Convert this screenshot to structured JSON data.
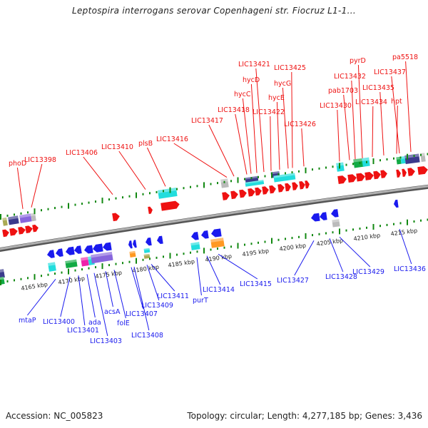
{
  "title": "Leptospira interrogans serovar Copenhageni str. Fiocruz L1-1...",
  "footer": {
    "accession": "Accession: NC_005823",
    "summary": "Topology: circular; Length: 4,277,185 bp; Genes: 3,436"
  },
  "colors": {
    "red": "#ee1111",
    "blue": "#1a1aee",
    "cyan": "#22dddd",
    "darkblue": "#3a3a8c",
    "purple": "#8866dd",
    "green": "#11aa44",
    "magenta": "#ee22aa",
    "orange": "#ff9922",
    "gray": "#bbbbbb",
    "olive": "#aaaa55",
    "tick": "#118811",
    "axis": "#888888"
  },
  "scale": {
    "unit": "kbp",
    "ticks": [
      {
        "label": "4165 kbp"
      },
      {
        "label": "4170 kbp"
      },
      {
        "label": "4175 kbp"
      },
      {
        "label": "4180 kbp"
      },
      {
        "label": "4185 kbp"
      },
      {
        "label": "4190 kbp"
      },
      {
        "label": "4195 kbp"
      },
      {
        "label": "4200 kbp"
      },
      {
        "label": "4205 kbp"
      },
      {
        "label": "4210 kbp"
      },
      {
        "label": "4215 kbp"
      }
    ]
  },
  "top_labels": [
    "phoD",
    "LIC13398",
    "LIC13406",
    "LIC13410",
    "plsB",
    "LIC13416",
    "LIC13417",
    "LIC13418",
    "hycC",
    "hycD",
    "LIC13421",
    "LIC13422",
    "hycE",
    "hycG",
    "LIC13425",
    "LIC13426",
    "LIC13430",
    "pab1703",
    "LIC13432",
    "pyrD",
    "LIC13434",
    "LIC13435",
    "hpt",
    "LIC13437",
    "pa5518"
  ],
  "bottom_labels": [
    "mtaP",
    "LIC13400",
    "LIC13401",
    "ada",
    "LIC13403",
    "acsA",
    "folE",
    "LIC13407",
    "LIC13408",
    "LIC13409",
    "LIC13411",
    "purT",
    "LIC13414",
    "LIC13415",
    "LIC13427",
    "LIC13428",
    "LIC13429",
    "LIC13436"
  ]
}
